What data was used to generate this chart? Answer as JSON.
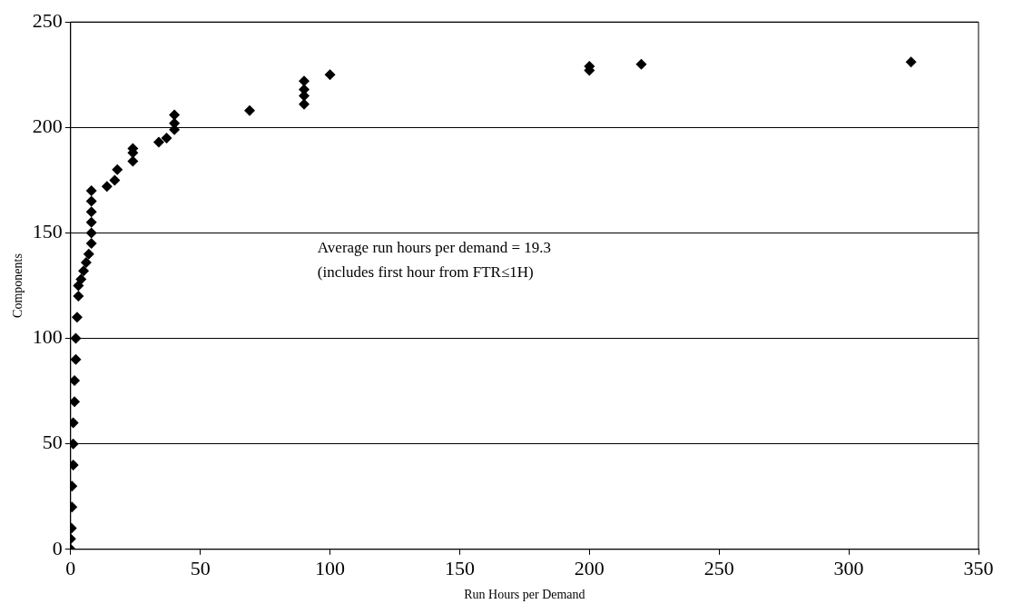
{
  "chart_data": {
    "type": "scatter",
    "xlabel": "Run Hours per Demand",
    "ylabel": "Components",
    "annotations": [
      "Average run hours per demand = 19.3",
      "(includes first hour from FTR≤1H)"
    ],
    "xlim": [
      0,
      350
    ],
    "xticks": [
      0,
      50,
      100,
      150,
      200,
      250,
      300,
      350
    ],
    "ylim": [
      0,
      250
    ],
    "yticks": [
      0,
      50,
      100,
      150,
      200,
      250
    ],
    "grid": "y",
    "legend": false,
    "marker": "diamond",
    "series": [
      {
        "color": "#000000",
        "x": [
          0,
          0,
          0.3,
          0.5,
          0.5,
          1,
          1,
          1,
          1.5,
          1.5,
          2,
          2,
          2.5,
          3,
          3,
          4,
          5,
          6,
          7,
          8,
          8,
          8,
          8,
          8,
          8,
          14,
          17,
          18,
          24,
          24,
          24,
          34,
          37,
          40,
          40,
          40,
          69,
          90,
          90,
          90,
          90,
          100,
          200,
          200,
          220,
          324
        ],
        "values": [
          0,
          5,
          10,
          20,
          30,
          40,
          50,
          60,
          70,
          80,
          90,
          100,
          110,
          120,
          125,
          128,
          132,
          136,
          140,
          145,
          150,
          155,
          160,
          165,
          170,
          172,
          175,
          180,
          184,
          188,
          190,
          193,
          195,
          199,
          202,
          206,
          208,
          211,
          215,
          218,
          222,
          225,
          227,
          229,
          230,
          231
        ]
      }
    ]
  }
}
